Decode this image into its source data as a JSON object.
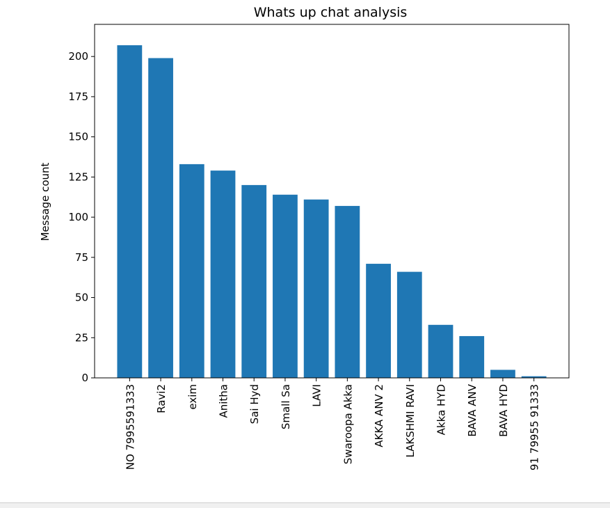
{
  "chart_data": {
    "type": "bar",
    "title": "Whats up chat analysis",
    "xlabel": "",
    "ylabel": "Message count",
    "ylim": [
      0,
      220
    ],
    "yticks": [
      0,
      25,
      50,
      75,
      100,
      125,
      150,
      175,
      200
    ],
    "grid": false,
    "legend": "none",
    "bar_color": "#1f77b4",
    "categories": [
      "NO 7995591333",
      "Ravi2",
      "exim",
      "Anitha",
      "Sai Hyd",
      "Small Sa",
      "LAVI",
      "Swaroopa Akka",
      "AKKA ANV 2",
      "LAKSHMI RAVI",
      "Akka HYD",
      "BAVA ANV",
      "BAVA HYD",
      "91 79955 91333"
    ],
    "values": [
      207,
      199,
      133,
      129,
      120,
      114,
      111,
      107,
      71,
      66,
      33,
      26,
      5,
      1
    ]
  }
}
